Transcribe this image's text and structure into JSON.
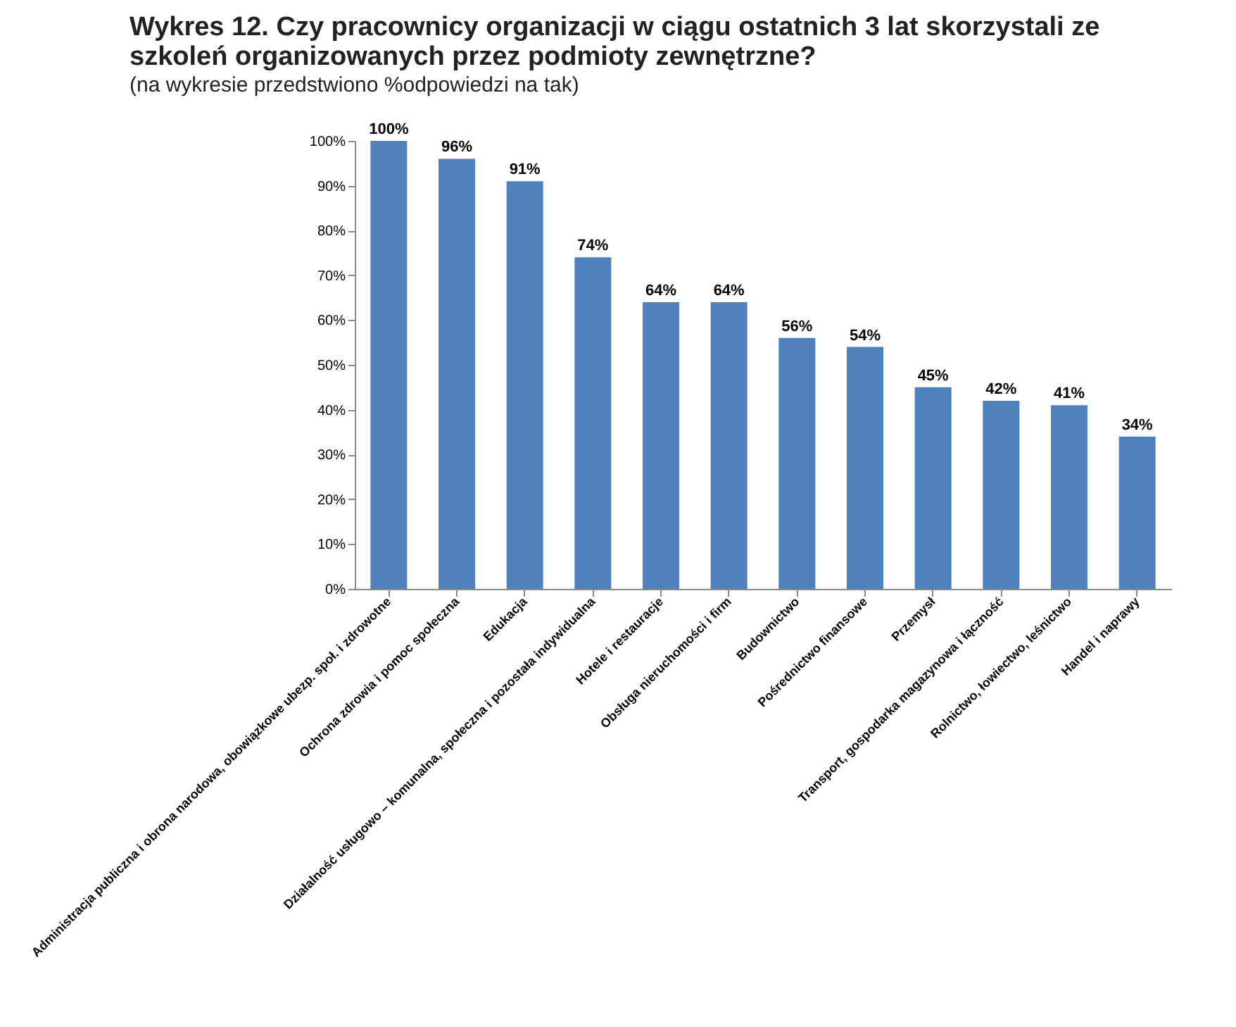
{
  "chart_data": {
    "type": "bar",
    "title": "Wykres 12. Czy pracownicy organizacji w ciągu ostatnich 3 lat skorzystali ze szkoleń organizowanych przez podmioty zewnętrzne?",
    "subtitle": "(na wykresie przedstwiono %odpowiedzi na tak)",
    "categories": [
      "Administracja publiczna i obrona narodowa, obowiązkowe ubezp. społ. i zdrowotne",
      "Ochrona zdrowia i pomoc społeczna",
      "Edukacja",
      "Działalność usługowo – komunalna, społeczna i pozostała indywidualna",
      "Hotele i restauracje",
      "Obsługa nieruchomości i firm",
      "Budownictwo",
      "Pośrednictwo finansowe",
      "Przemysł",
      "Transport, gospodarka magazynowa i łączność",
      "Rolnictwo, łowiectwo, leśnictwo",
      "Handel i naprawy"
    ],
    "values": [
      100,
      96,
      91,
      74,
      64,
      64,
      56,
      54,
      45,
      42,
      41,
      34
    ],
    "value_labels": [
      "100%",
      "96%",
      "91%",
      "74%",
      "64%",
      "64%",
      "56%",
      "54%",
      "45%",
      "42%",
      "41%",
      "34%"
    ],
    "color": "#4f81bd",
    "ylim": [
      0,
      100
    ],
    "yticks": [
      {
        "value": 0,
        "label": "0%"
      },
      {
        "value": 10,
        "label": "10%"
      },
      {
        "value": 20,
        "label": "20%"
      },
      {
        "value": 30,
        "label": "30%"
      },
      {
        "value": 40,
        "label": "40%"
      },
      {
        "value": 50,
        "label": "50%"
      },
      {
        "value": 60,
        "label": "60%"
      },
      {
        "value": 70,
        "label": "70%"
      },
      {
        "value": 80,
        "label": "80%"
      },
      {
        "value": 90,
        "label": "90%"
      },
      {
        "value": 100,
        "label": "100%"
      }
    ],
    "grid": false
  }
}
